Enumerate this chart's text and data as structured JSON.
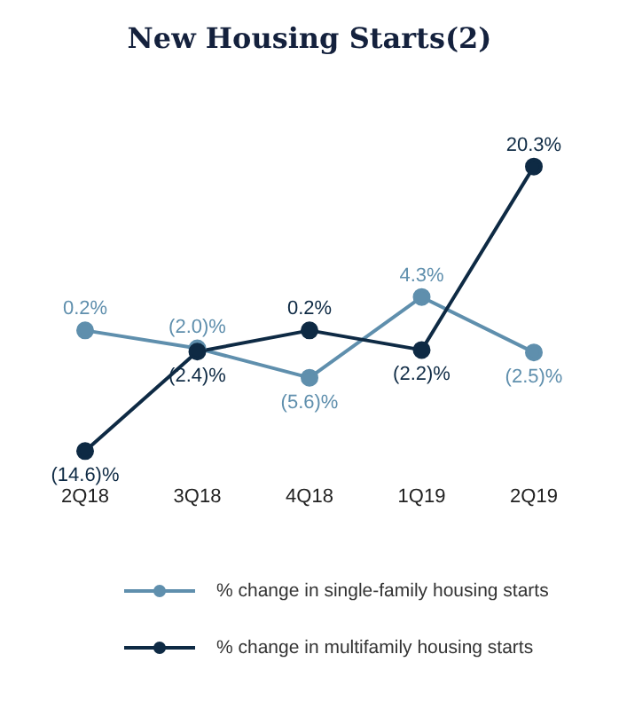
{
  "chart_data": {
    "type": "line",
    "title": "New Housing Starts(2)",
    "categories": [
      "2Q18",
      "3Q18",
      "4Q18",
      "1Q19",
      "2Q19"
    ],
    "legend": "bottom",
    "marker": "circle",
    "line_style": "solid",
    "grid": false,
    "series": [
      {
        "name": "% change in single-family housing starts",
        "color": "#5f8fad",
        "values": [
          0.2,
          -2.0,
          -5.6,
          4.3,
          -2.5
        ],
        "value_labels": [
          "0.2%",
          "(2.0)%",
          "(5.6)%",
          "4.3%",
          "(2.5)%"
        ]
      },
      {
        "name": "% change in multifamily housing starts",
        "color": "#0e2a44",
        "values": [
          -14.6,
          -2.4,
          0.2,
          -2.2,
          20.3
        ],
        "value_labels": [
          "(14.6)%",
          "(2.4)%",
          "0.2%",
          "(2.2)%",
          "20.3%"
        ]
      }
    ]
  }
}
